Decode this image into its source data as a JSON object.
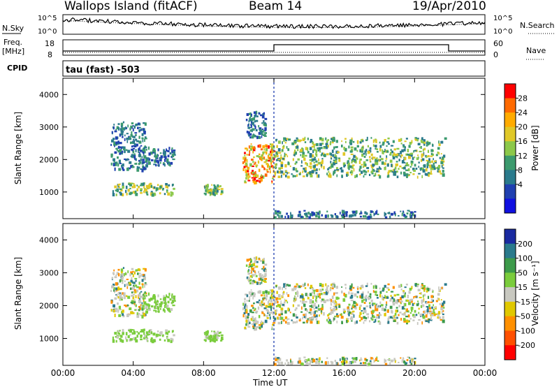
{
  "header": {
    "station": "Wallops Island (fitACF)",
    "beam": "Beam 14",
    "date": "19/Apr/2010"
  },
  "top_panels": {
    "nsky_label": "N.Sky",
    "nsearch_label": "N.Search",
    "noise_ticks": [
      "10^5",
      "10^0"
    ],
    "freq_label_1": "Freq.",
    "freq_label_2": "[MHz]",
    "freq_ticks": [
      "18",
      "8"
    ],
    "nave_label": "Nave",
    "nave_ticks": [
      "60",
      "0"
    ],
    "cpid_label": "CPID",
    "cpid_text": "tau (fast) -503"
  },
  "chart_data": [
    {
      "type": "heatmap",
      "name": "Power",
      "xlabel": "Time UT",
      "ylabel": "Slant Range [km]",
      "xlim_hours": [
        0,
        24
      ],
      "ylim_km": [
        180,
        4500
      ],
      "x_ticks": [
        "00:00",
        "04:00",
        "08:00",
        "12:00",
        "16:00",
        "20:00",
        "00:00"
      ],
      "y_ticks": [
        1000,
        2000,
        3000,
        4000
      ],
      "colorbar": {
        "label": "Power [dB]",
        "ticks": [
          "28",
          "24",
          "20",
          "16",
          "12",
          "8",
          "4"
        ],
        "colors": [
          "#ff0000",
          "#ff6a00",
          "#ffab00",
          "#e0c828",
          "#8cc84a",
          "#3c9a6e",
          "#2a7a8c",
          "#2040b0",
          "#1010e0"
        ]
      },
      "echo_regions": [
        {
          "t0": 2.7,
          "t1": 4.7,
          "r0": 1700,
          "r1": 3200,
          "level": "weak"
        },
        {
          "t0": 4.5,
          "t1": 6.3,
          "r0": 1850,
          "r1": 2400,
          "level": "weak"
        },
        {
          "t0": 2.8,
          "t1": 6.3,
          "r0": 950,
          "r1": 1300,
          "level": "medium"
        },
        {
          "t0": 8.0,
          "t1": 9.0,
          "r0": 950,
          "r1": 1250,
          "level": "medium"
        },
        {
          "t0": 10.2,
          "t1": 12.0,
          "r0": 1300,
          "r1": 2500,
          "level": "strong"
        },
        {
          "t0": 10.4,
          "t1": 11.5,
          "r0": 2700,
          "r1": 3500,
          "level": "weak"
        },
        {
          "t0": 12.0,
          "t1": 21.7,
          "r0": 1500,
          "r1": 2700,
          "level": "medium"
        },
        {
          "t0": 12.0,
          "t1": 20.0,
          "r0": 250,
          "r1": 450,
          "level": "weak"
        }
      ]
    },
    {
      "type": "heatmap",
      "name": "Velocity",
      "xlabel": "Time UT",
      "ylabel": "Slant Range [km]",
      "xlim_hours": [
        0,
        24
      ],
      "ylim_km": [
        180,
        4500
      ],
      "x_ticks": [
        "00:00",
        "04:00",
        "08:00",
        "12:00",
        "16:00",
        "20:00",
        "00:00"
      ],
      "y_ticks": [
        1000,
        2000,
        3000,
        4000
      ],
      "colorbar": {
        "label": "Velocity [m s⁻¹]",
        "ticks": [
          "200",
          "100",
          "50",
          "15",
          "-15",
          "-50",
          "-100",
          "-200"
        ],
        "colors": [
          "#1a2aa0",
          "#2a7a8c",
          "#3c9a4a",
          "#7acc3c",
          "#c8c8c0",
          "#e0c800",
          "#ff9000",
          "#ff5000",
          "#ff0000"
        ]
      }
    }
  ]
}
